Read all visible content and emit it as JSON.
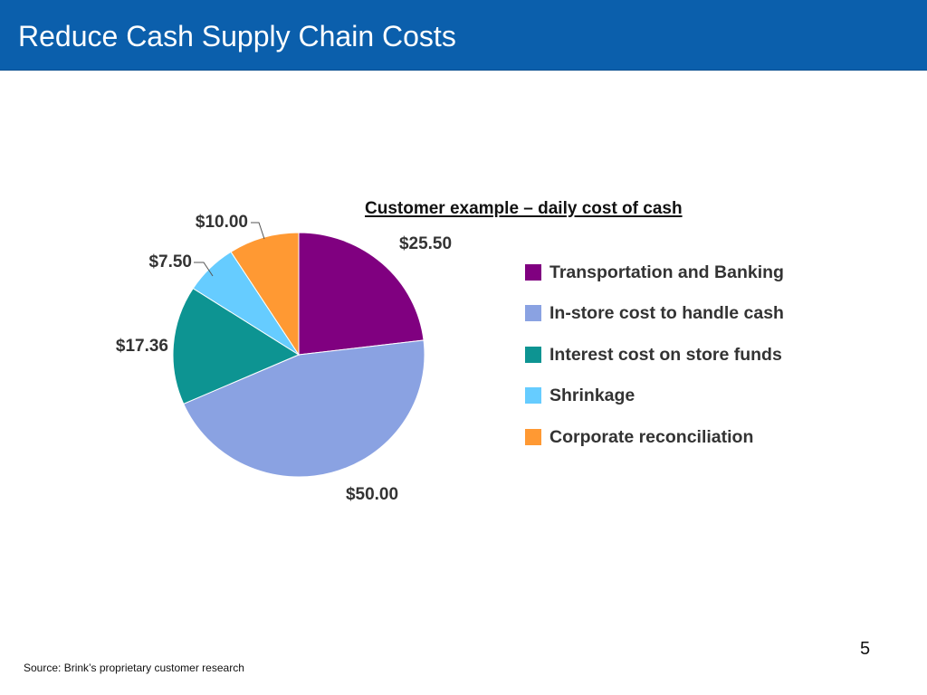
{
  "slide": {
    "title": "Reduce Cash Supply Chain Costs",
    "page_number": "5",
    "source": "Source: Brink’s proprietary customer research"
  },
  "colors": {
    "header": "#0b5fac",
    "header_text": "#ffffff"
  },
  "chart_data": {
    "type": "pie",
    "title": "Customer example – daily cost of cash",
    "legend_position": "right",
    "slices": [
      {
        "name": "Transportation and Banking",
        "value": 25.5,
        "label": "$25.50",
        "color": "#800080"
      },
      {
        "name": "In-store cost to handle cash",
        "value": 50.0,
        "label": "$50.00",
        "color": "#8aa2e2"
      },
      {
        "name": "Interest cost on store funds",
        "value": 17.36,
        "label": "$17.36",
        "color": "#0d9492"
      },
      {
        "name": "Shrinkage",
        "value": 7.5,
        "label": "$7.50",
        "color": "#66ccff"
      },
      {
        "name": "Corporate reconciliation",
        "value": 10.0,
        "label": "$10.00",
        "color": "#ff9933"
      }
    ]
  }
}
